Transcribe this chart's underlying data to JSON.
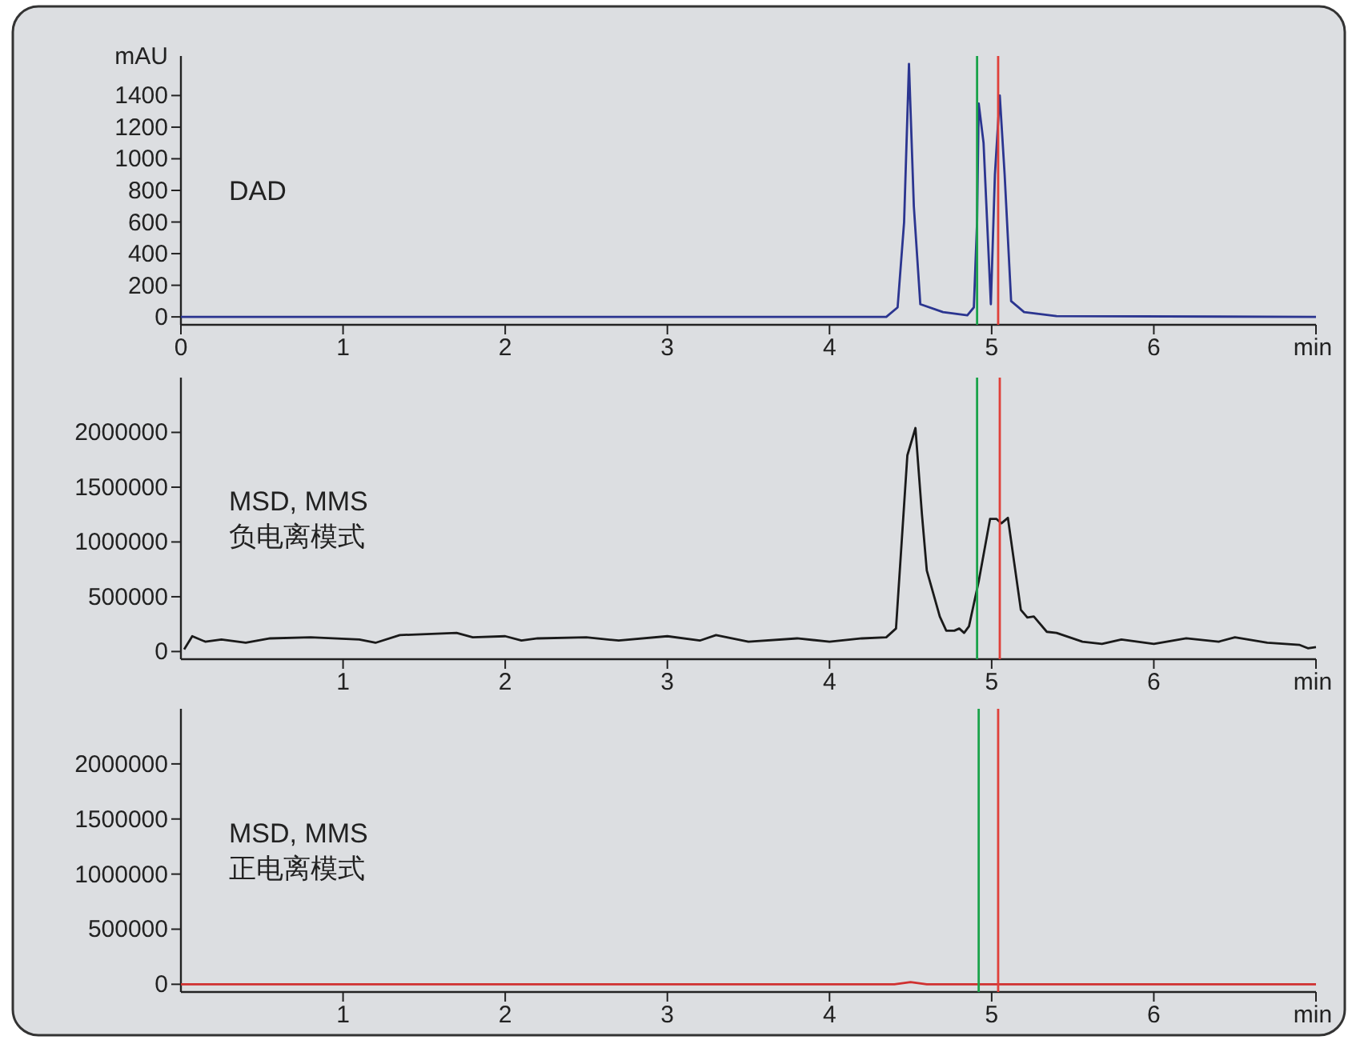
{
  "chart_data": [
    {
      "type": "line",
      "ylabel": "mAU",
      "xlabel": "min",
      "annotations": [
        "DAD"
      ],
      "xlim": [
        0,
        7
      ],
      "ylim": [
        -50,
        1650
      ],
      "xticks": [
        0,
        1,
        2,
        3,
        4,
        5,
        6
      ],
      "yticks": [
        0,
        200,
        400,
        600,
        800,
        1000,
        1200,
        1400
      ],
      "series": [
        {
          "color": "#2b3590",
          "x": [
            0,
            4.35,
            4.42,
            4.46,
            4.49,
            4.52,
            4.56,
            4.7,
            4.85,
            4.89,
            4.91,
            4.92,
            4.95,
            4.995,
            5.02,
            5.05,
            5.08,
            5.12,
            5.2,
            5.4,
            7
          ],
          "values": [
            0,
            0,
            60,
            600,
            1600,
            700,
            80,
            30,
            10,
            60,
            600,
            1350,
            1100,
            80,
            900,
            1400,
            900,
            100,
            30,
            5,
            0
          ]
        }
      ],
      "ref_lines": [
        {
          "axis": "x",
          "value": 4.91,
          "color": "#1aa34a"
        },
        {
          "axis": "x",
          "value": 5.04,
          "color": "#e0403a"
        }
      ]
    },
    {
      "type": "line",
      "xlabel": "min",
      "annotations": [
        "MSD, MMS",
        "负电离模式"
      ],
      "xlim": [
        0,
        7
      ],
      "ylim": [
        -70000,
        2500000
      ],
      "xticks": [
        1,
        2,
        3,
        4,
        5,
        6
      ],
      "yticks": [
        0,
        500000,
        1000000,
        1500000,
        2000000
      ],
      "series": [
        {
          "color": "#1a1a1a",
          "x": [
            0.02,
            0.07,
            0.15,
            0.25,
            0.4,
            0.55,
            0.8,
            1.1,
            1.2,
            1.35,
            1.7,
            1.8,
            2.0,
            2.1,
            2.2,
            2.5,
            2.7,
            3.0,
            3.2,
            3.3,
            3.5,
            3.8,
            4.0,
            4.2,
            4.35,
            4.41,
            4.48,
            4.53,
            4.57,
            4.6,
            4.68,
            4.72,
            4.77,
            4.8,
            4.83,
            4.86,
            4.92,
            4.99,
            5.03,
            5.06,
            5.1,
            5.14,
            5.18,
            5.22,
            5.26,
            5.34,
            5.4,
            5.56,
            5.68,
            5.8,
            6.0,
            6.2,
            6.4,
            6.5,
            6.7,
            6.9,
            6.95,
            7.0
          ],
          "values": [
            20000,
            140000,
            90000,
            110000,
            80000,
            120000,
            130000,
            110000,
            80000,
            150000,
            170000,
            130000,
            140000,
            100000,
            120000,
            130000,
            100000,
            140000,
            100000,
            150000,
            90000,
            120000,
            90000,
            120000,
            130000,
            210000,
            1790000,
            2040000,
            1250000,
            740000,
            320000,
            190000,
            190000,
            210000,
            170000,
            230000,
            640000,
            1210000,
            1210000,
            1170000,
            1220000,
            800000,
            380000,
            310000,
            320000,
            180000,
            170000,
            90000,
            70000,
            110000,
            70000,
            120000,
            90000,
            130000,
            80000,
            60000,
            30000,
            40000
          ]
        }
      ],
      "ref_lines": [
        {
          "axis": "x",
          "value": 4.91,
          "color": "#1aa34a"
        },
        {
          "axis": "x",
          "value": 5.05,
          "color": "#e0403a"
        }
      ]
    },
    {
      "type": "line",
      "xlabel": "min",
      "annotations": [
        "MSD, MMS",
        "正电离模式"
      ],
      "xlim": [
        0,
        7
      ],
      "ylim": [
        -70000,
        2500000
      ],
      "xticks": [
        1,
        2,
        3,
        4,
        5,
        6
      ],
      "yticks": [
        0,
        500000,
        1000000,
        1500000,
        2000000
      ],
      "series": [
        {
          "color": "#d03030",
          "x": [
            0,
            4.4,
            4.5,
            4.6,
            7
          ],
          "values": [
            0,
            0,
            20000,
            0,
            0
          ]
        }
      ],
      "ref_lines": [
        {
          "axis": "x",
          "value": 4.92,
          "color": "#1aa34a"
        },
        {
          "axis": "x",
          "value": 5.04,
          "color": "#e0403a"
        }
      ]
    }
  ]
}
